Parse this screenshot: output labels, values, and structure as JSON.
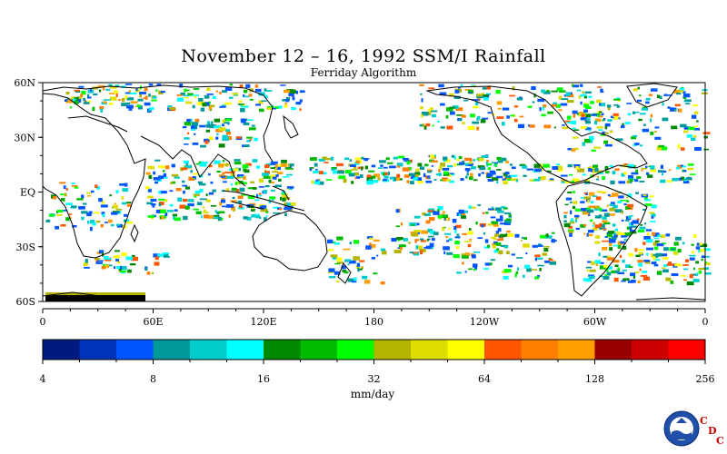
{
  "title": "November 12 – 16, 1992 SSM/I Rainfall",
  "subtitle": "Ferriday Algorithm",
  "map": {
    "lat_labels": [
      "60N",
      "30N",
      "EQ",
      "30S",
      "60S"
    ],
    "lon_labels": [
      "0",
      "60E",
      "120E",
      "180",
      "120W",
      "60W",
      "0"
    ]
  },
  "colorbar": {
    "colors": [
      "#001a80",
      "#0033bb",
      "#0055ff",
      "#009999",
      "#00cccc",
      "#00ffff",
      "#008800",
      "#00bb00",
      "#00ff00",
      "#b3b300",
      "#dddd00",
      "#ffff00",
      "#ff5500",
      "#ff8000",
      "#ffa000",
      "#990000",
      "#cc0000",
      "#ff0000"
    ],
    "labels": [
      "4",
      "8",
      "16",
      "32",
      "64",
      "128",
      "256"
    ],
    "unit": "mm/day"
  },
  "logo": {
    "name": "NOAA",
    "letters": [
      "C",
      "D",
      "C"
    ]
  }
}
